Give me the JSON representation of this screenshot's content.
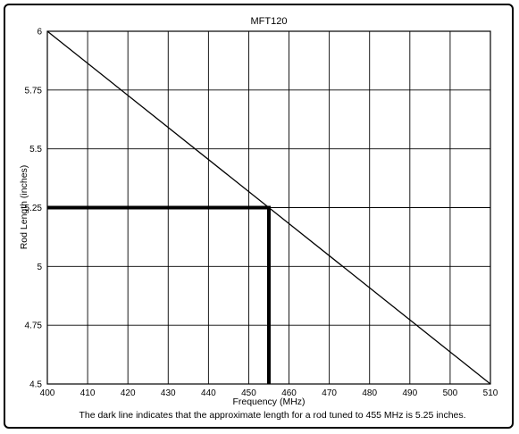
{
  "chart_data": {
    "type": "line",
    "title": "MFT120",
    "xlabel": "Frequency (MHz)",
    "ylabel": "Rod Length (inches)",
    "xlim": [
      400,
      510
    ],
    "ylim": [
      4.5,
      6
    ],
    "x_ticks": [
      400,
      410,
      420,
      430,
      440,
      450,
      460,
      470,
      480,
      490,
      500,
      510
    ],
    "y_ticks": [
      4.5,
      4.75,
      5,
      5.25,
      5.5,
      5.75,
      6
    ],
    "y_tick_labels": [
      "4.5",
      "4.75",
      "5",
      "5.25",
      "5.5",
      "5.75",
      "6"
    ],
    "grid": true,
    "series": [
      {
        "x": [
          400,
          510
        ],
        "values": [
          6,
          4.5
        ]
      }
    ],
    "highlight": {
      "x": 455,
      "y": 5.25
    },
    "caption": "The dark line indicates that the approximate length for a rod tuned to 455 MHz is 5.25 inches."
  }
}
